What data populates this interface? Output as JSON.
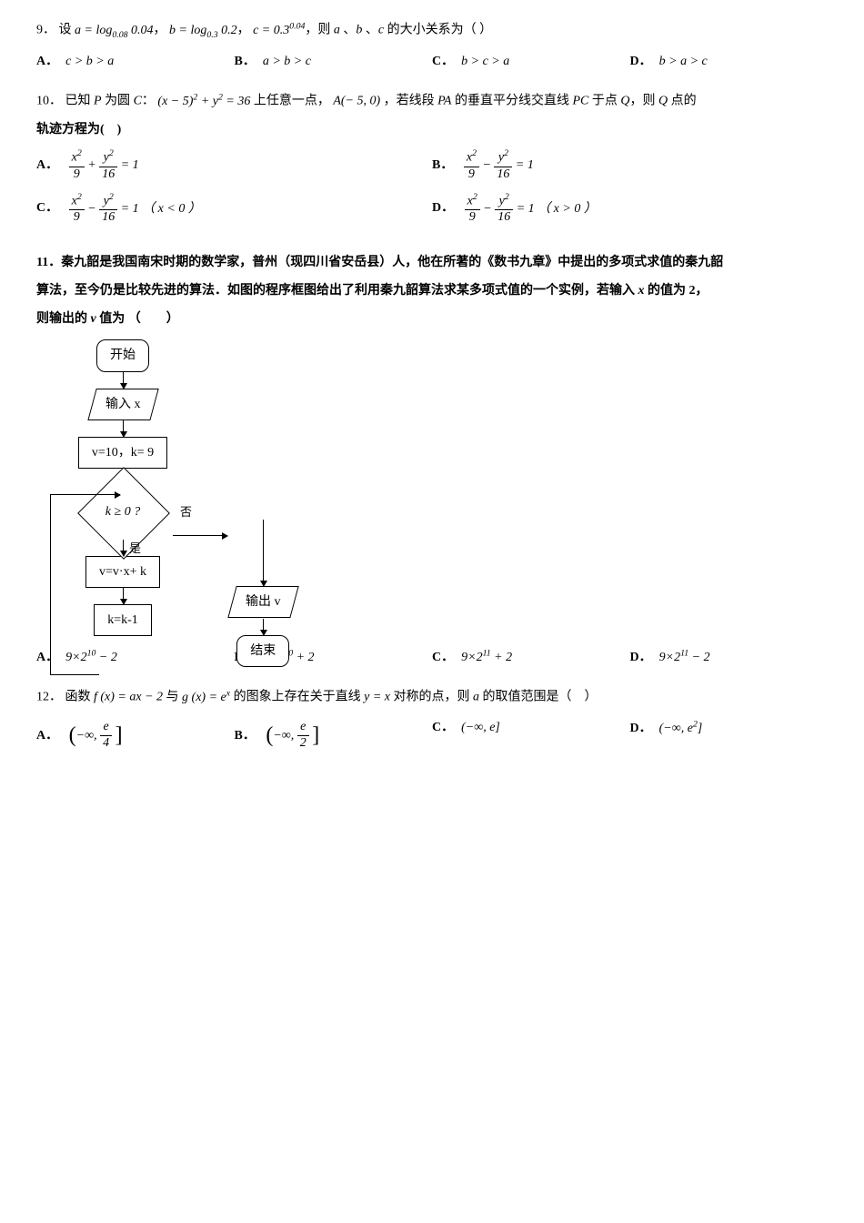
{
  "q9": {
    "number": "9．",
    "prefix": "设",
    "expr_a": "a = log<sub>0.08</sub> 0.04",
    "sep1": "，",
    "expr_b": "b = log<sub>0.3</sub> 0.2",
    "sep2": "，",
    "expr_c": "c = 0.3<sup>0.04</sup>",
    "suffix": "，则 <span class=\"math\">a</span> 、<span class=\"math\">b</span> 、<span class=\"math\">c</span> 的大小关系为（  ）",
    "opts": {
      "A": "c > b > a",
      "B": "a > b > c",
      "C": "b > c > a",
      "D": "b > a > c"
    }
  },
  "q10": {
    "number": "10．",
    "line1_pre": "已知 <span class=\"math\">P</span> 为圆 <span class=\"math\">C</span>：",
    "circle": "(x − 5)<sup>2</sup> + y<sup>2</sup> = 36",
    "line1_mid": " 上任意一点，",
    "pointA": "A(− 5, 0)",
    "line1_post": "，若线段 <span class=\"math\">PA</span> 的垂直平分线交直线 <span class=\"math\">PC</span> 于点 <span class=\"math\">Q</span>，则 <span class=\"math\">Q</span> 点的",
    "line2": "轨迹方程为(　)",
    "opts": {
      "A": {
        "lhs_n1": "x<sup>2</sup>",
        "lhs_d1": "9",
        "op": "+",
        "lhs_n2": "y<sup>2</sup>",
        "lhs_d2": "16",
        "rhs": "= 1",
        "cond": ""
      },
      "B": {
        "lhs_n1": "x<sup>2</sup>",
        "lhs_d1": "9",
        "op": "−",
        "lhs_n2": "y<sup>2</sup>",
        "lhs_d2": "16",
        "rhs": "= 1",
        "cond": ""
      },
      "C": {
        "lhs_n1": "x<sup>2</sup>",
        "lhs_d1": "9",
        "op": "−",
        "lhs_n2": "y<sup>2</sup>",
        "lhs_d2": "16",
        "rhs": "= 1",
        "cond": "（ x < 0 ）"
      },
      "D": {
        "lhs_n1": "x<sup>2</sup>",
        "lhs_d1": "9",
        "op": "−",
        "lhs_n2": "y<sup>2</sup>",
        "lhs_d2": "16",
        "rhs": "= 1",
        "cond": "（ x > 0 ）"
      }
    }
  },
  "q11": {
    "number": "11．",
    "p1": "秦九韶是我国南宋时期的数学家，普州（现四川省安岳县）人，他在所著的《数书九章》中提出的多项式求值的秦九韶",
    "p2_pre": "算法，至今仍是比较先进的算法．如图的程序框图给出了利用秦九韶算法求某多项式值的一个实例，若输入 ",
    "p2_x": "x",
    "p2_post": " 的值为 2，",
    "p3_pre": "则输出的 ",
    "p3_v": "v",
    "p3_post": " 值为",
    "paren": "（　　）",
    "flow": {
      "start": "开始",
      "input": "输入 x",
      "init": "v=10，k= 9",
      "cond": "k ≥ 0 ?",
      "no": "否",
      "yes": "是",
      "step1": "v=v·x+ k",
      "step2": "k=k-1",
      "output": "输出 v",
      "end": "结束"
    },
    "opts": {
      "A": "9×2<sup>10</sup> − 2",
      "B": "9×2<sup>10</sup> + 2",
      "C": "9×2<sup>11</sup> + 2",
      "D": "9×2<sup>11</sup> − 2"
    }
  },
  "q12": {
    "number": "12．",
    "pre": "函数 ",
    "f": "f (x) = ax − 2",
    "mid1": " 与 ",
    "g": "g (x) = e<sup>x</sup>",
    "mid2": " 的图象上存在关于直线 ",
    "line": "y = x",
    "post": " 对称的点，则 <span class=\"math\">a</span> 的取值范围是（　）",
    "opts": {
      "A": {
        "type": "frac",
        "open": "(−∞,",
        "n": "e",
        "d": "4",
        "close": "]"
      },
      "B": {
        "type": "frac",
        "open": "(−∞,",
        "n": "e",
        "d": "2",
        "close": "]"
      },
      "C": {
        "type": "plain",
        "text": "(−∞, e]"
      },
      "D": {
        "type": "plain",
        "text": "(−∞, e<sup>2</sup>]"
      }
    }
  },
  "labels": {
    "A": "A．",
    "B": "B．",
    "C": "C．",
    "D": "D．"
  },
  "colors": {
    "text": "#000000",
    "bg": "#ffffff",
    "border": "#000000"
  }
}
